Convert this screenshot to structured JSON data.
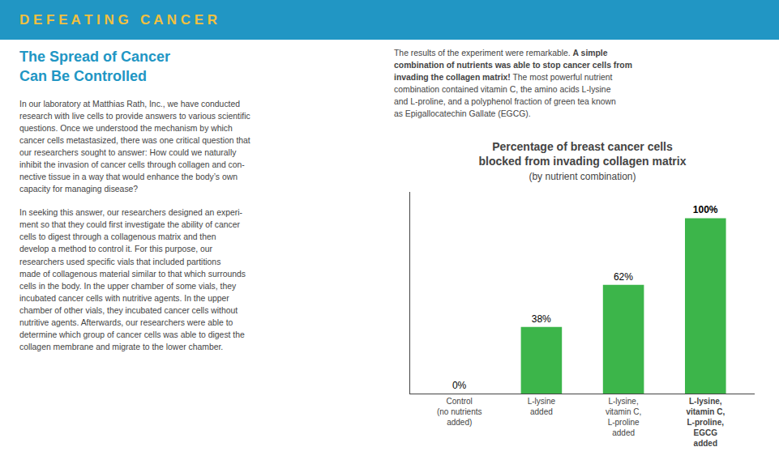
{
  "chart_data": {
    "type": "bar",
    "title": "Percentage of breast cancer cells\nblocked from invading collagen matrix",
    "subtitle": "(by nutrient combination)",
    "categories": [
      "Control\n(no nutrients\nadded)",
      "L-lysine\nadded",
      "L-lysine,\nvitamin C,\nL-proline\nadded",
      "L-lysine,\nvitamin C,\nL-proline,\nEGCG\nadded"
    ],
    "values": [
      0,
      38,
      62,
      100
    ],
    "value_labels": [
      "0%",
      "38%",
      "62%",
      "100%"
    ],
    "data_labels": true,
    "color": "#3CB54A",
    "ylim": [
      0,
      115
    ],
    "grid": false,
    "tick_labels": "x",
    "annotations": [
      "D E F E A T I N G   C A N C E R",
      "The Spread of Cancer\nCan Be Controlled",
      "In our laboratory at Matthias Rath, Inc., we have conducted\nresearch with live cells to provide answers to various scientific\nquestions. Once we understood the mechanism by which\ncancer cells metastasized, there was one critical question that\nour researchers sought to answer: How could we naturally\ninhibit the invasion of cancer cells through collagen and con-\nnective tissue in a way that would enhance the body’s own\ncapacity for managing disease?",
      "In seeking this answer, our researchers designed an experi-\nment so that they could first investigate the ability of cancer\ncells to digest through a collagenous matrix and then\ndevelop a method to control it. For this purpose, our\nresearchers used specific vials that included partitions\nmade of collagenous material similar to that which surrounds\ncells in the body. In the upper chamber of some vials, they\nincubated cancer cells with nutritive agents. In the upper\nchamber of other vials, they incubated cancer cells without\nnutritive agents. Afterwards, our researchers were able to\ndetermine which group of cancer cells was able to digest the\ncollagen membrane and migrate to the lower chamber.",
      "The results of the experiment were remarkable. ",
      "A simple\ncombination of nutrients was able to stop cancer cells from\ninvading the collagen matrix!",
      " The most powerful nutrient\ncombination contained vitamin C, the amino acids L-lysine\nand L-proline, and a polyphenol fraction of green tea known\nas Epigallocatechin Gallate (EGCG)."
    ]
  }
}
